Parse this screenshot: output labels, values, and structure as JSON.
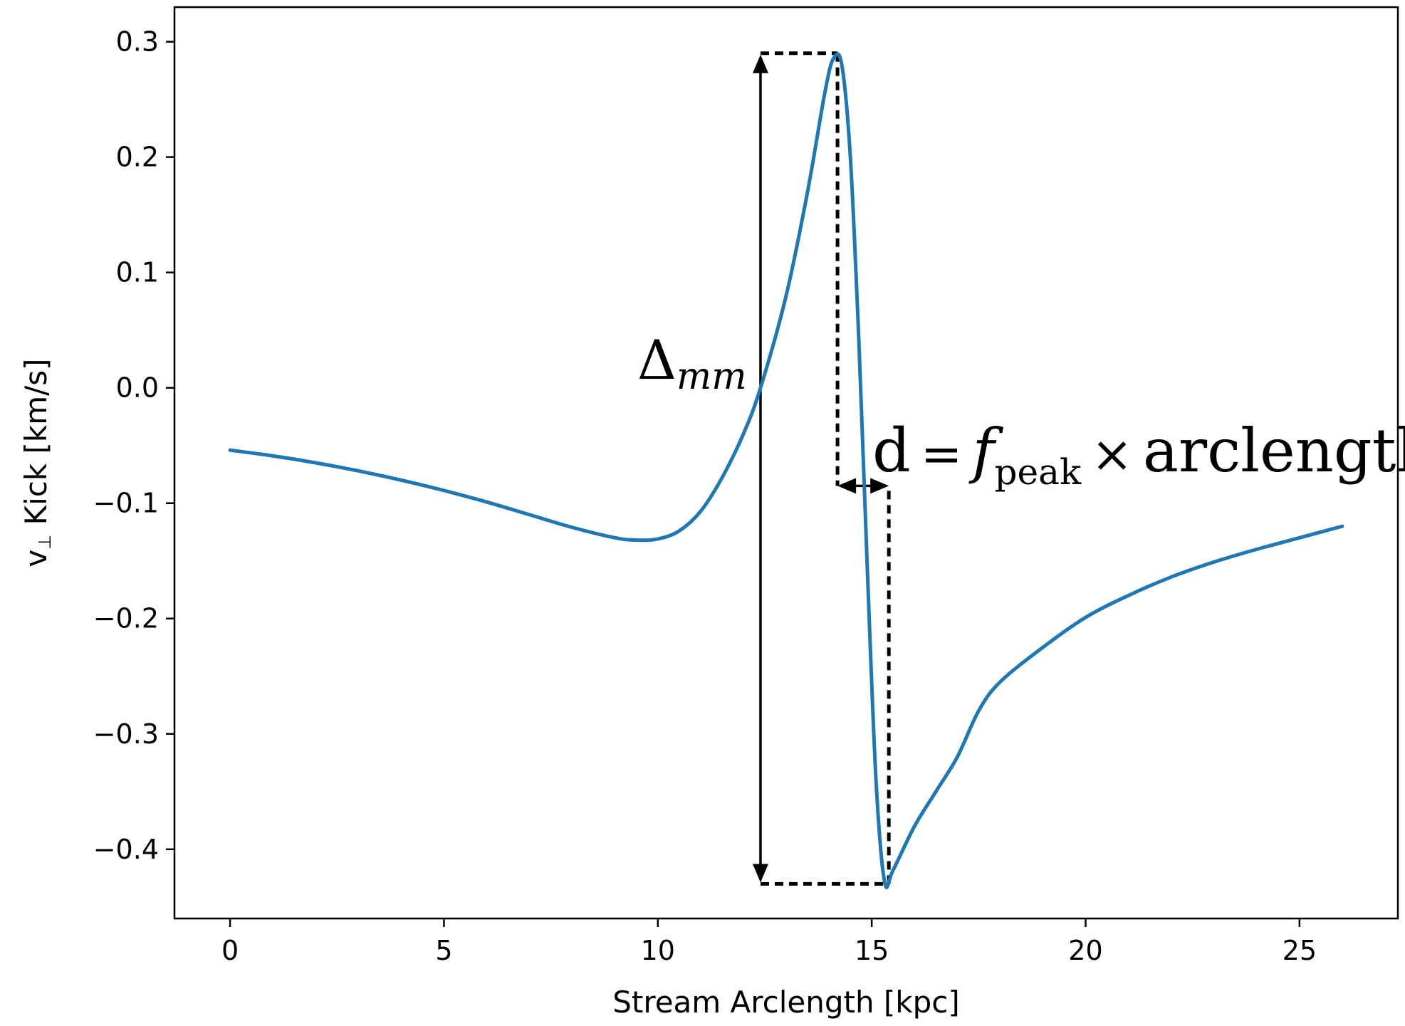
{
  "chart_data": {
    "type": "line",
    "title": "",
    "xlabel": "Stream Arclength [kpc]",
    "ylabel_main": "v",
    "ylabel_sub": "⊥",
    "ylabel_rest": " Kick [km/s]",
    "xlim": [
      -1.3,
      27.3
    ],
    "ylim": [
      -0.46,
      0.33
    ],
    "xticks": [
      0,
      5,
      10,
      15,
      20,
      25
    ],
    "xtick_labels": [
      "0",
      "5",
      "10",
      "15",
      "20",
      "25"
    ],
    "yticks": [
      0.3,
      0.2,
      0.1,
      0.0,
      -0.1,
      -0.2,
      -0.3,
      -0.4
    ],
    "ytick_labels": [
      "0.3",
      "0.2",
      "0.1",
      "0.0",
      "−0.1",
      "−0.2",
      "−0.3",
      "−0.4"
    ],
    "grid": false,
    "series": [
      {
        "color": "#1f77b4",
        "x": [
          0,
          1,
          2,
          3,
          4,
          5,
          6,
          7,
          8,
          9,
          9.5,
          10,
          10.5,
          11,
          11.5,
          12,
          12.4,
          13,
          13.5,
          13.9,
          14.1,
          14.3,
          14.5,
          14.7,
          14.9,
          15.1,
          15.3,
          15.5,
          16,
          16.5,
          17,
          17.5,
          18,
          19,
          20,
          21,
          22,
          23,
          24,
          25,
          26
        ],
        "y": [
          -0.054,
          -0.059,
          -0.065,
          -0.072,
          -0.08,
          -0.089,
          -0.099,
          -0.11,
          -0.121,
          -0.13,
          -0.132,
          -0.131,
          -0.124,
          -0.107,
          -0.078,
          -0.04,
          0.0,
          0.08,
          0.17,
          0.255,
          0.285,
          0.28,
          0.2,
          0.04,
          -0.16,
          -0.34,
          -0.428,
          -0.418,
          -0.38,
          -0.35,
          -0.32,
          -0.28,
          -0.255,
          -0.225,
          -0.199,
          -0.18,
          -0.164,
          -0.151,
          -0.14,
          -0.13,
          -0.12
        ]
      }
    ],
    "annotations": {
      "delta_main": "Δ",
      "delta_sub": "mm",
      "eq_d": "d",
      "eq_equals": "=",
      "eq_f": "f",
      "eq_f_sub": "peak",
      "eq_times": "×",
      "eq_arclength": "arclength"
    },
    "markers": {
      "peak": {
        "x": 14.2,
        "y": 0.29
      },
      "trough": {
        "x": 15.4,
        "y": -0.43
      },
      "zero_cross": {
        "x": 12.4,
        "y": 0.0
      },
      "d_level_y": -0.085
    }
  }
}
